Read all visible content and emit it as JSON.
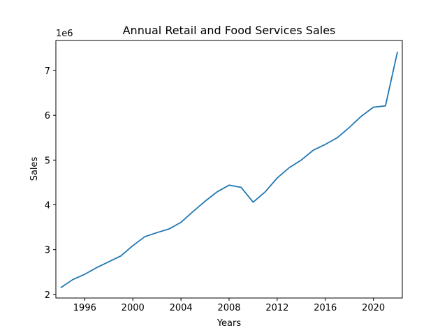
{
  "chart_data": {
    "type": "line",
    "title": "Annual Retail and Food Services Sales",
    "xlabel": "Years",
    "ylabel": "Sales",
    "y_offset_label": "1e6",
    "xlim": [
      1993.6,
      2022.4
    ],
    "ylim": [
      1.92,
      7.67
    ],
    "x_ticks": [
      1996,
      2000,
      2004,
      2008,
      2012,
      2016,
      2020
    ],
    "y_ticks": [
      2,
      3,
      4,
      5,
      6,
      7
    ],
    "y_tick_labels": [
      "2",
      "3",
      "4",
      "5",
      "6",
      "7"
    ],
    "grid": false,
    "series": [
      {
        "color": "#1f77b4",
        "x": [
          1994,
          1995,
          1996,
          1997,
          1998,
          1999,
          2000,
          2001,
          2002,
          2003,
          2004,
          2005,
          2006,
          2007,
          2008,
          2009,
          2010,
          2011,
          2012,
          2013,
          2014,
          2015,
          2016,
          2017,
          2018,
          2019,
          2020,
          2021,
          2022
        ],
        "y": [
          2150000,
          2330000,
          2450000,
          2600000,
          2730000,
          2860000,
          3090000,
          3290000,
          3380000,
          3460000,
          3610000,
          3850000,
          4080000,
          4290000,
          4440000,
          4390000,
          4060000,
          4290000,
          4600000,
          4830000,
          5000000,
          5220000,
          5350000,
          5500000,
          5730000,
          5980000,
          6180000,
          6210000,
          7420000
        ]
      }
    ]
  }
}
